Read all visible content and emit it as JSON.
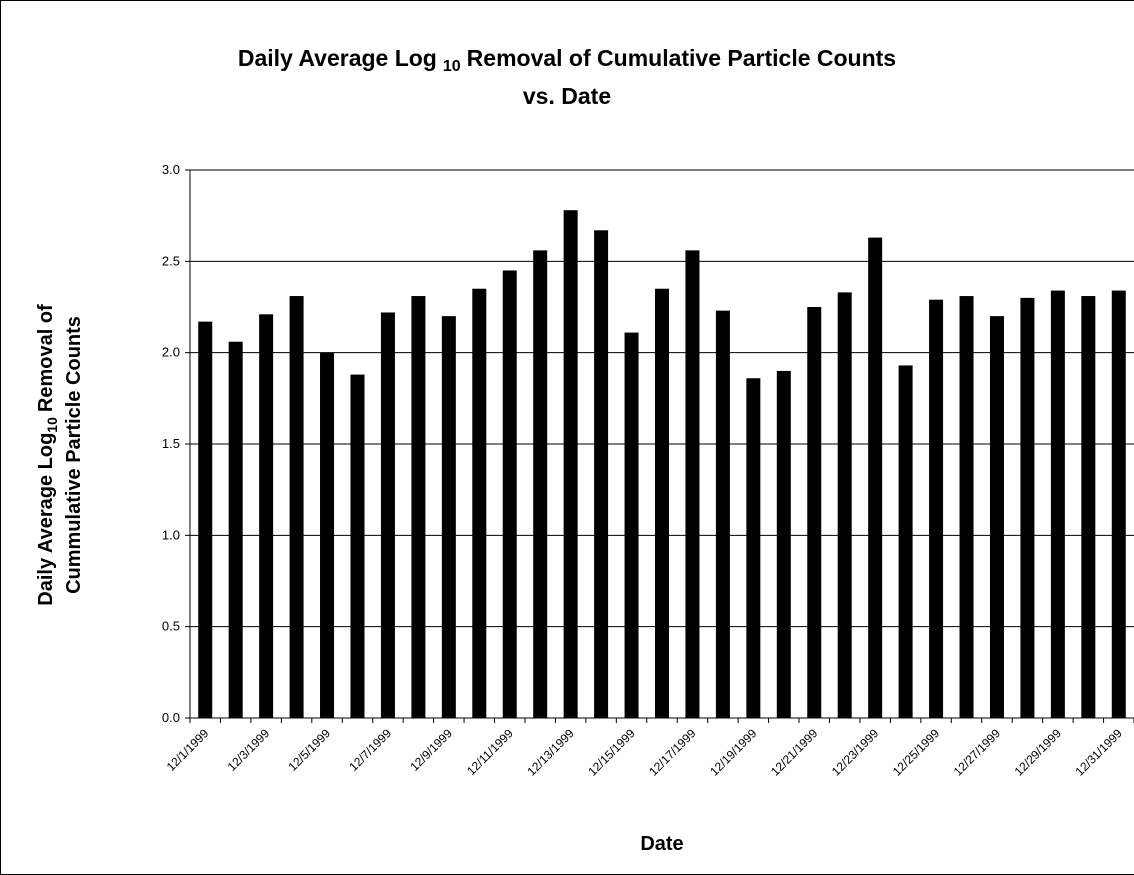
{
  "chart_data": {
    "type": "bar",
    "title": [
      "Daily Average Log",
      "10",
      "Removal of Cumulative Particle Counts",
      "vs. Date"
    ],
    "y_label": [
      "Daily Average Log",
      "10",
      "Removal of",
      "Cummulative Particle Counts"
    ],
    "x_label": "Date",
    "categories": [
      "12/1/1999",
      null,
      "12/3/1999",
      null,
      "12/5/1999",
      null,
      "12/7/1999",
      null,
      "12/9/1999",
      null,
      "12/11/1999",
      null,
      "12/13/1999",
      null,
      "12/15/1999",
      null,
      "12/17/1999",
      null,
      "12/19/1999",
      null,
      "12/21/1999",
      null,
      "12/23/1999",
      null,
      "12/25/1999",
      null,
      "12/27/1999",
      null,
      "12/29/1999",
      null,
      "12/31/1999"
    ],
    "values": [
      2.17,
      2.06,
      2.21,
      2.31,
      2.0,
      1.88,
      2.22,
      2.31,
      2.2,
      2.35,
      2.45,
      2.56,
      2.78,
      2.67,
      2.11,
      2.35,
      2.56,
      2.23,
      1.86,
      1.9,
      2.25,
      2.33,
      2.63,
      1.93,
      2.29,
      2.31,
      2.2,
      2.3,
      2.34,
      2.31,
      2.34
    ],
    "color": "#000000",
    "ylim": [
      0,
      3
    ],
    "yticks": [
      {
        "value": 0,
        "label": "0.0"
      },
      0.5,
      {
        "value": 1,
        "label": "1.0"
      },
      1.5,
      {
        "value": 2,
        "label": "2.0"
      },
      2.5,
      {
        "value": 3,
        "label": "3.0"
      }
    ],
    "grid": true
  }
}
